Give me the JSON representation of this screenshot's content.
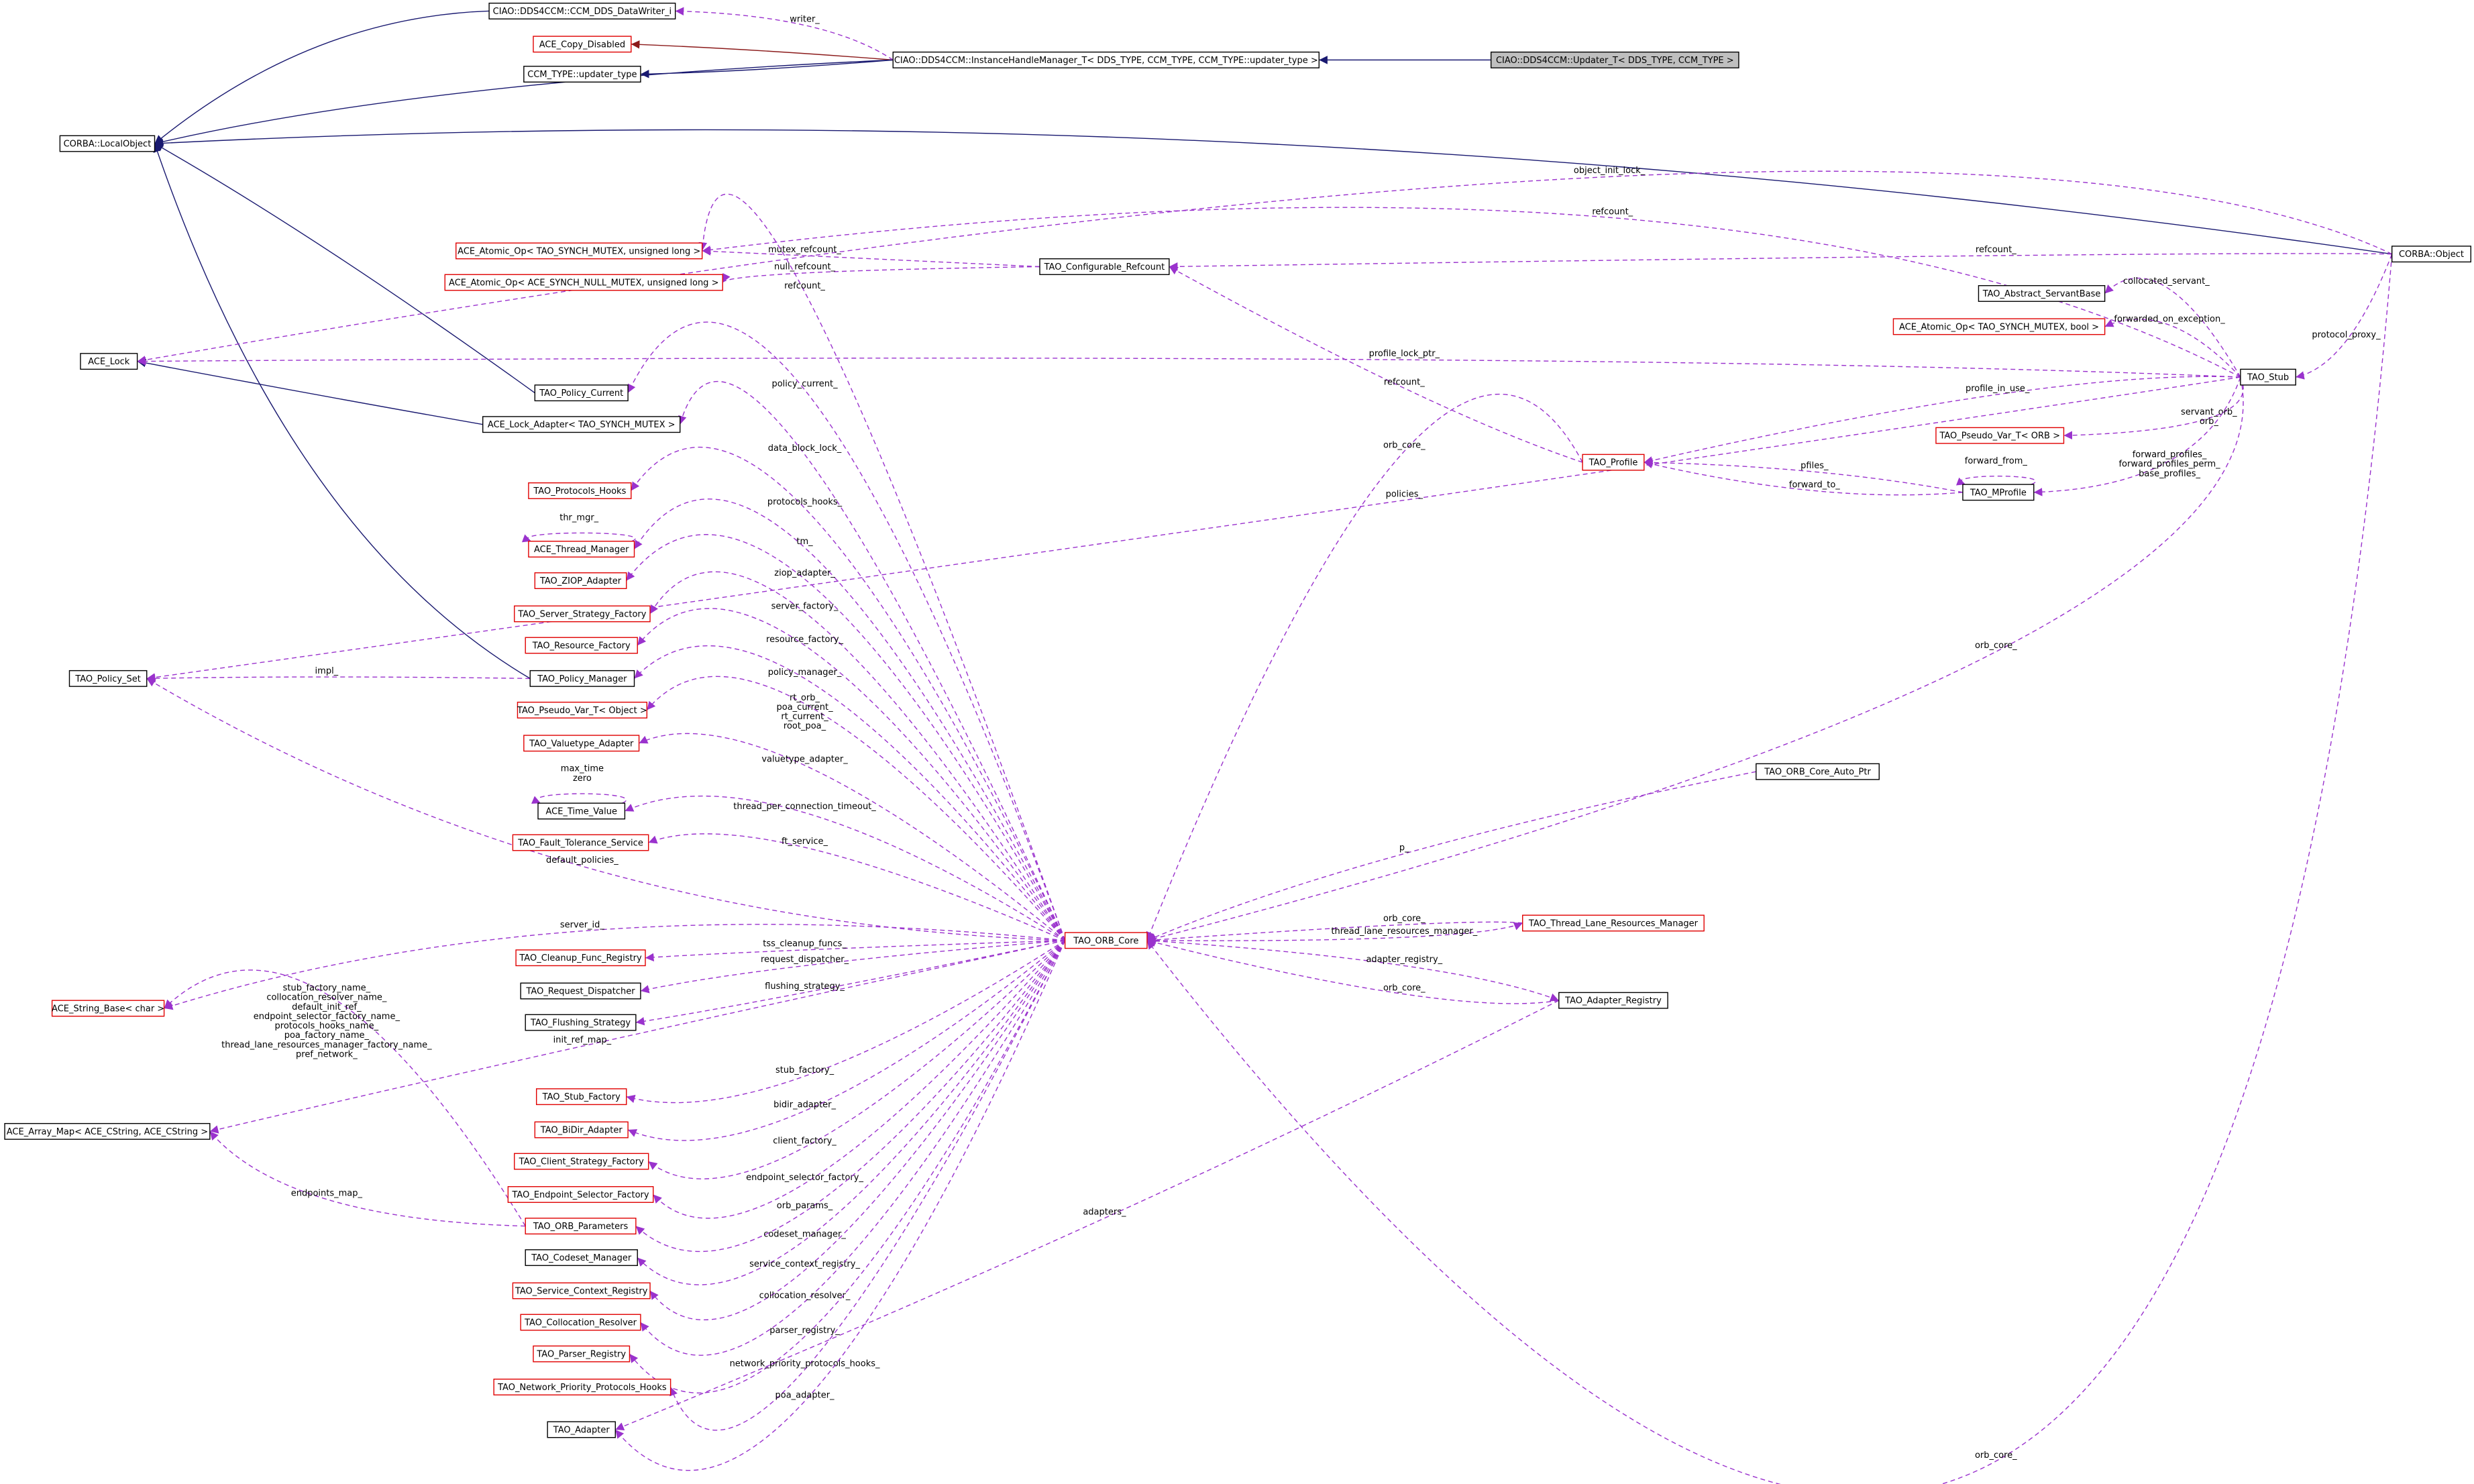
{
  "nodes": [
    {
      "label": "CIAO::DDS4CCM::CCM_DDS_DataWriter_i"
    },
    {
      "label": "ACE_Copy_Disabled"
    },
    {
      "label": "CCM_TYPE::updater_type"
    },
    {
      "label": "CIAO::DDS4CCM::InstanceHandleManager_T< DDS_TYPE, CCM_TYPE, CCM_TYPE::updater_type >"
    },
    {
      "label": "CIAO::DDS4CCM::Updater_T< DDS_TYPE, CCM_TYPE >"
    },
    {
      "label": "CORBA::LocalObject"
    },
    {
      "label": "ACE_Atomic_Op< TAO_SYNCH_MUTEX, unsigned long >"
    },
    {
      "label": "ACE_Atomic_Op< ACE_SYNCH_NULL_MUTEX, unsigned long >"
    },
    {
      "label": "TAO_Configurable_Refcount"
    },
    {
      "label": "CORBA::Object"
    },
    {
      "label": "TAO_Abstract_ServantBase"
    },
    {
      "label": "ACE_Atomic_Op< TAO_SYNCH_MUTEX, bool >"
    },
    {
      "label": "ACE_Lock"
    },
    {
      "label": "TAO_Stub"
    },
    {
      "label": "TAO_Policy_Current"
    },
    {
      "label": "ACE_Lock_Adapter< TAO_SYNCH_MUTEX >"
    },
    {
      "label": "TAO_Pseudo_Var_T< ORB >"
    },
    {
      "label": "TAO_Profile"
    },
    {
      "label": "TAO_MProfile"
    },
    {
      "label": "TAO_Protocols_Hooks"
    },
    {
      "label": "ACE_Thread_Manager"
    },
    {
      "label": "TAO_ZIOP_Adapter"
    },
    {
      "label": "TAO_Server_Strategy_Factory"
    },
    {
      "label": "TAO_Resource_Factory"
    },
    {
      "label": "TAO_Policy_Set"
    },
    {
      "label": "TAO_Policy_Manager"
    },
    {
      "label": "TAO_Pseudo_Var_T< Object >"
    },
    {
      "label": "TAO_Valuetype_Adapter"
    },
    {
      "label": "ACE_Time_Value"
    },
    {
      "label": "TAO_Fault_Tolerance_Service"
    },
    {
      "label": "TAO_ORB_Core_Auto_Ptr"
    },
    {
      "label": "TAO_ORB_Core"
    },
    {
      "label": "TAO_Thread_Lane_Resources_Manager"
    },
    {
      "label": "TAO_Cleanup_Func_Registry"
    },
    {
      "label": "TAO_Adapter_Registry"
    },
    {
      "label": "TAO_Request_Dispatcher"
    },
    {
      "label": "ACE_String_Base< char >"
    },
    {
      "label": "TAO_Flushing_Strategy"
    },
    {
      "label": "TAO_Stub_Factory"
    },
    {
      "label": "ACE_Array_Map< ACE_CString, ACE_CString >"
    },
    {
      "label": "TAO_BiDir_Adapter"
    },
    {
      "label": "TAO_Client_Strategy_Factory"
    },
    {
      "label": "TAO_Endpoint_Selector_Factory"
    },
    {
      "label": "TAO_ORB_Parameters"
    },
    {
      "label": "TAO_Codeset_Manager"
    },
    {
      "label": "TAO_Service_Context_Registry"
    },
    {
      "label": "TAO_Collocation_Resolver"
    },
    {
      "label": "TAO_Parser_Registry"
    },
    {
      "label": "TAO_Network_Priority_Protocols_Hooks"
    },
    {
      "label": "TAO_Adapter"
    }
  ],
  "edges": [
    {
      "labels": [
        "writer_"
      ]
    },
    {
      "labels": [
        "object_init_lock_"
      ]
    },
    {
      "labels": [
        "refcount_"
      ]
    },
    {
      "labels": [
        "refcount_"
      ]
    },
    {
      "labels": [
        "mutex_refcount_"
      ]
    },
    {
      "labels": [
        "null_refcount_"
      ]
    },
    {
      "labels": [
        "refcount_"
      ]
    },
    {
      "labels": [
        "collocated_servant_"
      ]
    },
    {
      "labels": [
        "forwarded_on_exception_"
      ]
    },
    {
      "labels": [
        "protocol_proxy_"
      ]
    },
    {
      "labels": [
        "profile_lock_ptr_"
      ]
    },
    {
      "labels": [
        "policy_current_"
      ]
    },
    {
      "labels": [
        "profile_in_use_"
      ]
    },
    {
      "labels": [
        "refcount_"
      ]
    },
    {
      "labels": [
        "servant_orb_",
        "orb_"
      ]
    },
    {
      "labels": [
        "data_block_lock_"
      ]
    },
    {
      "labels": [
        "orb_core_"
      ]
    },
    {
      "labels": [
        "forward_profiles_",
        "forward_profiles_perm_",
        "base_profiles_"
      ]
    },
    {
      "labels": [
        "pfiles_"
      ]
    },
    {
      "labels": [
        "forward_from_"
      ]
    },
    {
      "labels": [
        "forward_to_"
      ]
    },
    {
      "labels": [
        "policies_"
      ]
    },
    {
      "labels": [
        "protocols_hooks_"
      ]
    },
    {
      "labels": [
        "thr_mgr_"
      ]
    },
    {
      "labels": [
        "tm_"
      ]
    },
    {
      "labels": [
        "ziop_adapter_"
      ]
    },
    {
      "labels": [
        "server_factory_"
      ]
    },
    {
      "labels": [
        "resource_factory_"
      ]
    },
    {
      "labels": [
        "orb_core_"
      ]
    },
    {
      "labels": [
        "impl_"
      ]
    },
    {
      "labels": [
        "policy_manager_"
      ]
    },
    {
      "labels": [
        "rt_orb_",
        "poa_current_",
        "rt_current_",
        "root_poa_"
      ]
    },
    {
      "labels": [
        "valuetype_adapter_"
      ]
    },
    {
      "labels": [
        "max_time",
        "zero"
      ]
    },
    {
      "labels": [
        "thread_per_connection_timeout_"
      ]
    },
    {
      "labels": [
        "ft_service_"
      ]
    },
    {
      "labels": [
        "default_policies_"
      ]
    },
    {
      "labels": [
        "p_"
      ]
    },
    {
      "labels": [
        "server_id_"
      ]
    },
    {
      "labels": [
        "orb_core_"
      ]
    },
    {
      "labels": [
        "thread_lane_resources_manager_"
      ]
    },
    {
      "labels": [
        "tss_cleanup_funcs_"
      ]
    },
    {
      "labels": [
        "adapter_registry_"
      ]
    },
    {
      "labels": [
        "request_dispatcher_"
      ]
    },
    {
      "labels": [
        "flushing_strategy_"
      ]
    },
    {
      "labels": [
        "orb_core_"
      ]
    },
    {
      "labels": [
        "stub_factory_name_",
        "collocation_resolver_name_",
        "default_init_ref_",
        "endpoint_selector_factory_name_",
        "protocols_hooks_name_",
        "poa_factory_name_",
        "thread_lane_resources_manager_factory_name_",
        "pref_network_"
      ]
    },
    {
      "labels": [
        "init_ref_map_"
      ]
    },
    {
      "labels": [
        "stub_factory_"
      ]
    },
    {
      "labels": [
        "bidir_adapter_"
      ]
    },
    {
      "labels": [
        "client_factory_"
      ]
    },
    {
      "labels": [
        "endpoint_selector_factory_"
      ]
    },
    {
      "labels": [
        "orb_params_"
      ]
    },
    {
      "labels": [
        "endpoints_map_"
      ]
    },
    {
      "labels": [
        "adapters_"
      ]
    },
    {
      "labels": [
        "codeset_manager_"
      ]
    },
    {
      "labels": [
        "service_context_registry_"
      ]
    },
    {
      "labels": [
        "collocation_resolver_"
      ]
    },
    {
      "labels": [
        "parser_registry_"
      ]
    },
    {
      "labels": [
        "network_priority_protocols_hooks_"
      ]
    },
    {
      "labels": [
        "poa_adapter_"
      ]
    },
    {
      "labels": [
        "orb_core_"
      ]
    }
  ]
}
